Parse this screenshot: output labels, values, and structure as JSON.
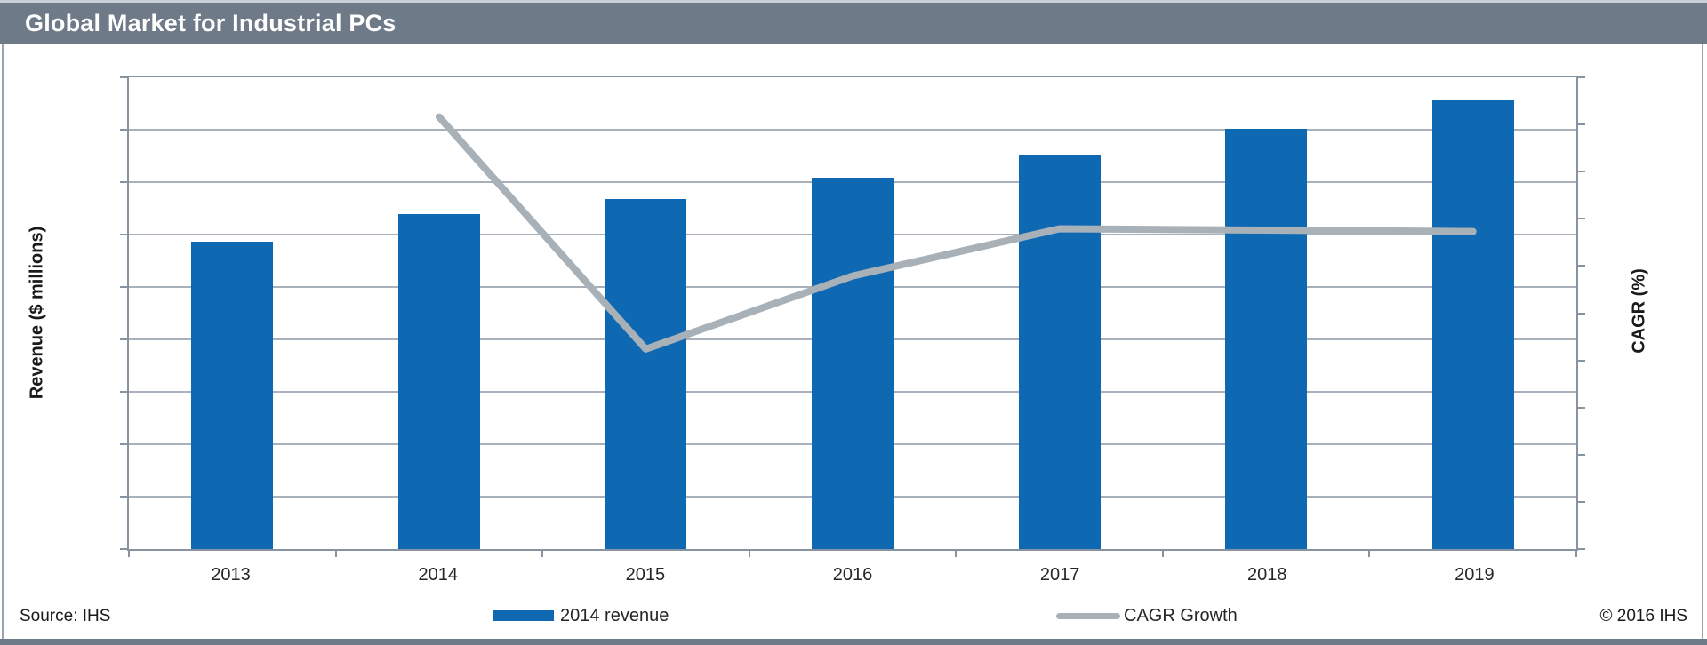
{
  "title_bar": {
    "title": "Global Market for Industrial PCs"
  },
  "axes": {
    "y_left_title": "Revenue ($ millions)",
    "y_right_title": "CAGR (%)"
  },
  "legend": [
    {
      "label": "2014 revenue",
      "swatch": "bar-swatch"
    },
    {
      "label": "CAGR Growth",
      "swatch": "line-swatch"
    }
  ],
  "footer": {
    "source": "Source: IHS",
    "copyright": "© 2016 IHS"
  },
  "colors": {
    "title_bar_bg": "#6E7A88",
    "title_text": "#FFFFFF",
    "top_strip": "#C9CFD6",
    "side_border": "#9AA4AF",
    "bottom_strip_bg": "#6E7A88",
    "axis_frame": "#8793A0",
    "gridline": "#A8B1BB",
    "bar_fill": "#0E68B2",
    "line_stroke": "#A9B1B8",
    "label_text": "#262626"
  },
  "chart_data": {
    "type": "bar",
    "subtype": "combo-bar-line-dual-axis",
    "title": "Global Market for Industrial PCs",
    "categories": [
      "2013",
      "2014",
      "2015",
      "2016",
      "2017",
      "2018",
      "2019"
    ],
    "series": [
      {
        "name": "2014 revenue",
        "type": "bar",
        "axis": "left",
        "color": "#0E68B2",
        "values": [
          5.87,
          6.39,
          6.67,
          7.08,
          7.51,
          8.02,
          8.58
        ]
      },
      {
        "name": "CAGR Growth",
        "type": "line",
        "axis": "right",
        "color": "#A9B1B8",
        "values": [
          null,
          9.16,
          4.24,
          5.79,
          6.79,
          6.76,
          6.73
        ]
      }
    ],
    "xlabel": "",
    "ylabel_left": "Revenue ($ millions)",
    "ylabel_right": "CAGR (%)",
    "y_left_range": [
      0,
      9
    ],
    "y_right_range": [
      0,
      10
    ],
    "left_axis_divisions": 9,
    "right_axis_divisions": 10,
    "grid": "horizontal-only",
    "legend_position": "bottom",
    "note": "No numeric tick labels are shown on either axis; series values are estimated in axis divisions above the baseline (left axis = 9 gridline divisions, right axis = 10 tick divisions)."
  }
}
